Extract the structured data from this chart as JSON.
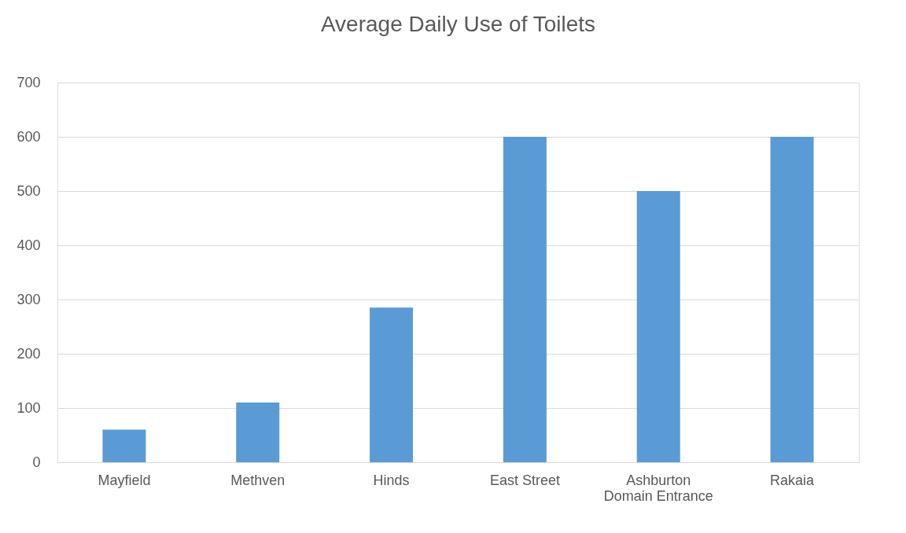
{
  "chart_data": {
    "type": "bar",
    "title": "Average Daily Use of Toilets",
    "categories": [
      "Mayfield",
      "Methven",
      "Hinds",
      "East Street",
      "Ashburton Domain Entrance",
      "Rakaia"
    ],
    "values": [
      60,
      110,
      285,
      600,
      500,
      600
    ],
    "color": "#5b9bd5",
    "ylim": [
      0,
      700
    ],
    "yticks": [
      0,
      100,
      200,
      300,
      400,
      500,
      600,
      700
    ],
    "grid": "y"
  }
}
